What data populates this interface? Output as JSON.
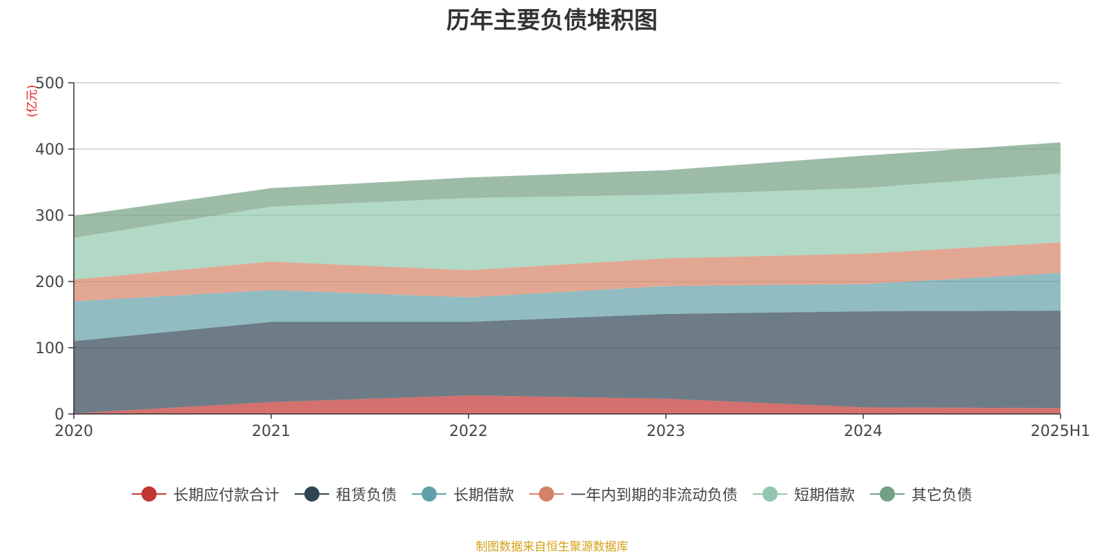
{
  "chart_data": {
    "type": "area",
    "stacked": true,
    "title": "历年主要负债堆积图",
    "y_unit": "(亿元)",
    "categories": [
      "2020",
      "2021",
      "2022",
      "2023",
      "2024",
      "2025H1"
    ],
    "ylim": [
      0,
      500
    ],
    "yticks": [
      "0",
      "100",
      "200",
      "300",
      "400",
      "500"
    ],
    "grid": true,
    "legend_position": "bottom",
    "series": [
      {
        "name": "长期应付款合计",
        "color": "#c23531",
        "values": [
          1,
          18,
          28,
          23,
          10,
          9
        ]
      },
      {
        "name": "租赁负债",
        "color": "#2f4554",
        "values": [
          109,
          121,
          111,
          128,
          145,
          147
        ]
      },
      {
        "name": "长期借款",
        "color": "#61a0a8",
        "values": [
          60,
          48,
          37,
          42,
          41,
          57
        ]
      },
      {
        "name": "一年内到期的非流动负债",
        "color": "#d48265",
        "values": [
          33,
          43,
          41,
          42,
          46,
          46
        ]
      },
      {
        "name": "短期借款",
        "color": "#91c7ae",
        "values": [
          63,
          83,
          109,
          96,
          99,
          104
        ]
      },
      {
        "name": "其它负债",
        "color": "#749f83",
        "values": [
          33,
          28,
          31,
          37,
          49,
          47
        ]
      }
    ],
    "source_note": "制图数据来自恒生聚源数据库"
  }
}
